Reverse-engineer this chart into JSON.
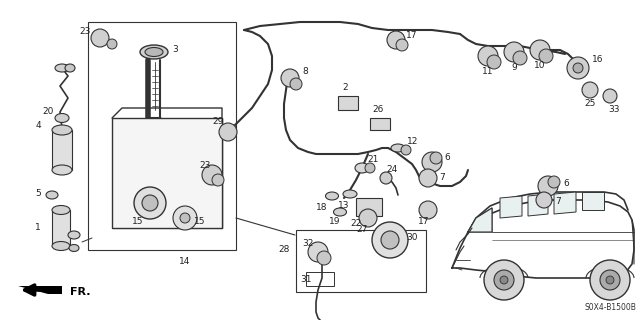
{
  "bg_color": "#ffffff",
  "diagram_code": "S0X4-B1500B",
  "lc": "#333333",
  "tc": "#222222",
  "figsize": [
    6.4,
    3.2
  ],
  "dpi": 100
}
